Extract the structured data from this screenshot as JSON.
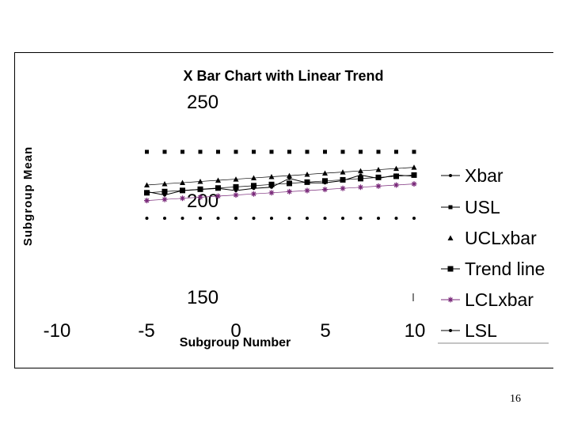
{
  "page_number": "16",
  "chart_data": {
    "type": "line",
    "title": "X Bar Chart with Linear Trend",
    "xlabel": "Subgroup Number",
    "ylabel": "Subgroup Mean",
    "x_ticks": [
      "-10",
      "-5",
      "0",
      "5",
      "10"
    ],
    "y_ticks": [
      "150",
      "200",
      "250"
    ],
    "x": [
      -5,
      -4,
      -3,
      -2,
      -1,
      0,
      1,
      2,
      3,
      4,
      5,
      6,
      7,
      8,
      9,
      10
    ],
    "series": [
      {
        "name": "Xbar",
        "marker": "dot",
        "values": [
          null,
          null,
          null,
          null,
          null,
          null,
          null,
          null,
          null,
          null,
          null,
          null,
          null,
          null,
          null,
          null
        ]
      },
      {
        "name": "USL",
        "marker": "square-small",
        "values": [
          null,
          null,
          null,
          null,
          null,
          null,
          null,
          null,
          null,
          null,
          null,
          null,
          null,
          null,
          null,
          null
        ]
      },
      {
        "name": "UCLxbar",
        "marker": "triangle",
        "values": [
          null,
          null,
          null,
          null,
          null,
          null,
          null,
          null,
          null,
          null,
          null,
          null,
          null,
          null,
          null,
          null
        ]
      },
      {
        "name": "Trend line",
        "marker": "square",
        "values": [
          null,
          null,
          null,
          null,
          null,
          null,
          null,
          null,
          null,
          null,
          null,
          null,
          null,
          null,
          null,
          null
        ]
      },
      {
        "name": "LCLxbar",
        "marker": "star",
        "values": [
          null,
          null,
          null,
          null,
          null,
          null,
          null,
          null,
          null,
          null,
          null,
          null,
          null,
          null,
          null,
          null
        ]
      },
      {
        "name": "LSL",
        "marker": "dot",
        "values": [
          null,
          null,
          null,
          null,
          null,
          null,
          null,
          null,
          null,
          null,
          null,
          null,
          null,
          null,
          null,
          null
        ]
      }
    ],
    "legend_position": "right",
    "grid": false
  }
}
